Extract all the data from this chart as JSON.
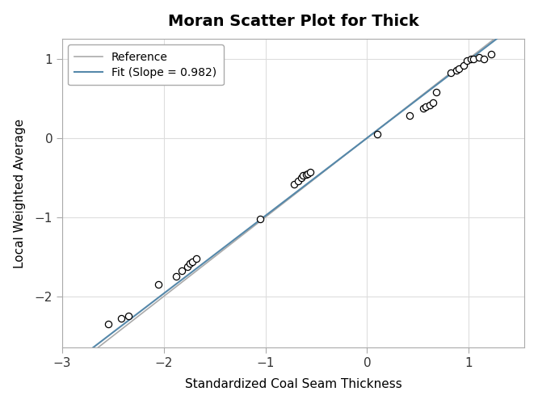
{
  "title": "Moran Scatter Plot for Thick",
  "xlabel": "Standardized Coal Seam Thickness",
  "ylabel": "Local Weighted Average",
  "xlim": [
    -2.9,
    1.55
  ],
  "ylim": [
    -2.65,
    1.25
  ],
  "xticks": [
    -3,
    -2,
    -1,
    0,
    1
  ],
  "yticks": [
    -2,
    -1,
    0,
    1
  ],
  "slope": 0.982,
  "background_color": "#ffffff",
  "plot_bg_color": "#ffffff",
  "scatter_x": [
    -2.55,
    -2.42,
    -2.35,
    -2.05,
    -1.88,
    -1.82,
    -1.77,
    -1.74,
    -1.72,
    -1.68,
    -1.05,
    -0.72,
    -0.68,
    -0.65,
    -0.63,
    -0.6,
    -0.58,
    -0.56,
    0.1,
    0.42,
    0.55,
    0.58,
    0.62,
    0.65,
    0.68,
    0.82,
    0.88,
    0.9,
    0.95,
    0.98,
    1.02,
    1.05,
    1.1,
    1.15,
    1.22
  ],
  "scatter_y": [
    -2.35,
    -2.28,
    -2.25,
    -1.85,
    -1.75,
    -1.68,
    -1.62,
    -1.58,
    -1.56,
    -1.52,
    -1.02,
    -0.58,
    -0.54,
    -0.5,
    -0.47,
    -0.46,
    -0.45,
    -0.43,
    0.05,
    0.28,
    0.38,
    0.4,
    0.42,
    0.45,
    0.58,
    0.82,
    0.86,
    0.88,
    0.92,
    0.98,
    1.0,
    1.0,
    1.02,
    1.0,
    1.06
  ],
  "fit_line_color": "#5588aa",
  "ref_line_color": "#aaaaaa",
  "scatter_facecolor": "white",
  "scatter_edgecolor": "black",
  "scatter_size": 35,
  "legend_ref": "Reference",
  "legend_fit": "Fit (Slope = 0.982)",
  "grid_color": "#dddddd",
  "spine_color": "#aaaaaa",
  "tick_color": "#333333",
  "title_fontsize": 14,
  "label_fontsize": 11,
  "tick_fontsize": 11
}
